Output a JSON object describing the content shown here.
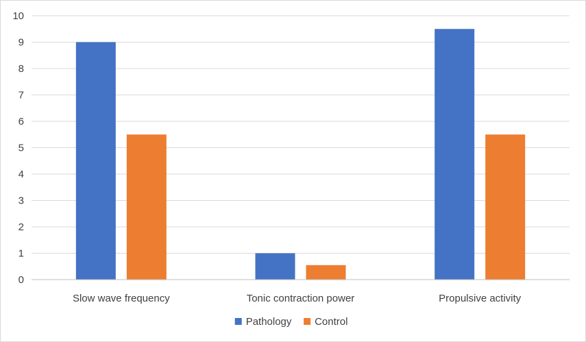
{
  "chart_data": {
    "type": "bar",
    "title": "",
    "xlabel": "",
    "ylabel": "",
    "categories": [
      "Slow wave frequency",
      "Tonic contraction power",
      "Propulsive activity"
    ],
    "series": [
      {
        "name": "Pathology",
        "color": "#4472c4",
        "values": [
          9,
          1,
          9.5
        ]
      },
      {
        "name": "Control",
        "color": "#ed7d31",
        "values": [
          5.5,
          0.55,
          5.5
        ]
      }
    ],
    "ylim": [
      0,
      10
    ],
    "yticks": [
      0,
      1,
      2,
      3,
      4,
      5,
      6,
      7,
      8,
      9,
      10
    ],
    "grid": true,
    "legend_position": "bottom"
  }
}
